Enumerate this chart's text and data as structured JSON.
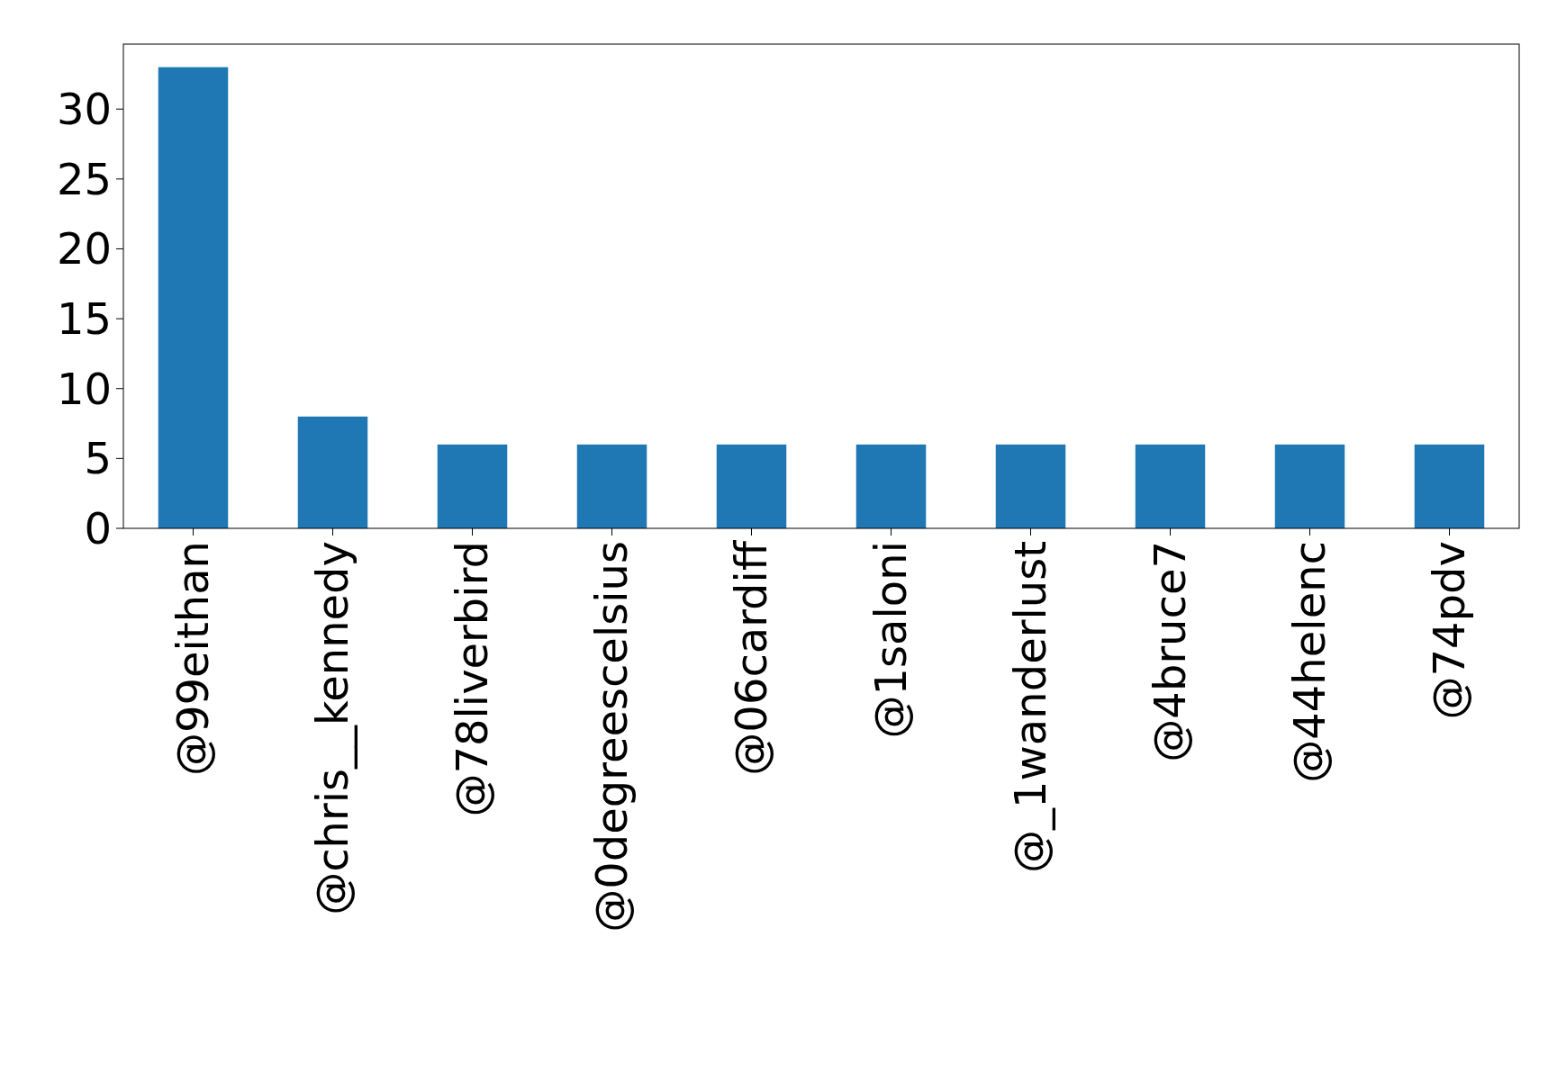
{
  "chart_data": {
    "type": "bar",
    "categories": [
      "@99eithan",
      "@chris__kennedy",
      "@78liverbird",
      "@0degreescelsius",
      "@06cardiff",
      "@1saloni",
      "@_1wanderlust",
      "@4bruce7",
      "@44helenc",
      "@74pdv"
    ],
    "values": [
      33,
      8,
      6,
      6,
      6,
      6,
      6,
      6,
      6,
      6
    ],
    "color": "#1f77b4",
    "ylim": [
      0,
      34.65
    ],
    "yticks": [
      0,
      5,
      10,
      15,
      20,
      25,
      30
    ],
    "grid": false
  }
}
